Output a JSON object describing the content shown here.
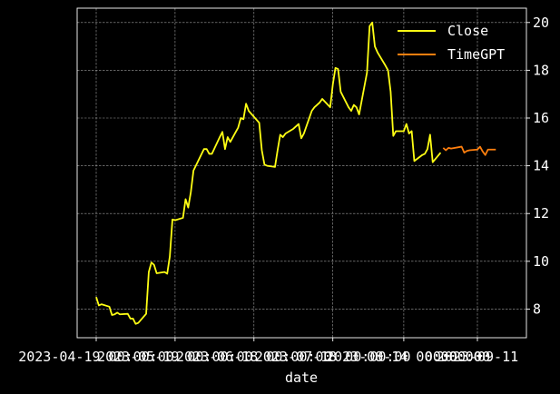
{
  "chart_data": {
    "type": "line",
    "title": "",
    "xlabel": "date",
    "ylabel": "",
    "ylim": [
      6.8,
      20.6
    ],
    "grid": true,
    "legend_position": "top-right",
    "background": "#000000",
    "x_ticks": [
      {
        "date": "2023-04-19",
        "label": "2023-04-19 00:00:00"
      },
      {
        "date": "2023-05-19",
        "label": "2023-05-19 00:00:00"
      },
      {
        "date": "2023-06-18",
        "label": "2023-06-18 00:00:00"
      },
      {
        "date": "2023-07-18",
        "label": "2023-07-18 00:00:00"
      },
      {
        "date": "2023-08-14",
        "label": "2023-08-14 00:00:00"
      },
      {
        "date": "2023-09-11",
        "label": "2023-09-11"
      }
    ],
    "x_tick_extra_label": "00:00:00",
    "y_ticks": [
      8,
      10,
      12,
      14,
      16,
      18,
      20
    ],
    "series": [
      {
        "name": "Close",
        "color": "#ffff14",
        "points": [
          [
            "2023-04-19",
            8.5
          ],
          [
            "2023-04-20",
            8.15
          ],
          [
            "2023-04-21",
            8.2
          ],
          [
            "2023-04-24",
            8.1
          ],
          [
            "2023-04-25",
            7.75
          ],
          [
            "2023-04-26",
            7.78
          ],
          [
            "2023-04-27",
            7.85
          ],
          [
            "2023-04-28",
            7.78
          ],
          [
            "2023-05-01",
            7.8
          ],
          [
            "2023-05-02",
            7.6
          ],
          [
            "2023-05-03",
            7.6
          ],
          [
            "2023-05-04",
            7.38
          ],
          [
            "2023-05-05",
            7.42
          ],
          [
            "2023-05-08",
            7.8
          ],
          [
            "2023-05-09",
            9.55
          ],
          [
            "2023-05-10",
            9.95
          ],
          [
            "2023-05-11",
            9.85
          ],
          [
            "2023-05-12",
            9.5
          ],
          [
            "2023-05-15",
            9.55
          ],
          [
            "2023-05-16",
            9.48
          ],
          [
            "2023-05-17",
            10.2
          ],
          [
            "2023-05-18",
            11.75
          ],
          [
            "2023-05-19",
            11.72
          ],
          [
            "2023-05-22",
            11.82
          ],
          [
            "2023-05-23",
            12.6
          ],
          [
            "2023-05-24",
            12.25
          ],
          [
            "2023-05-25",
            12.9
          ],
          [
            "2023-05-26",
            13.8
          ],
          [
            "2023-05-30",
            14.7
          ],
          [
            "2023-05-31",
            14.7
          ],
          [
            "2023-06-01",
            14.5
          ],
          [
            "2023-06-02",
            14.5
          ],
          [
            "2023-06-05",
            15.2
          ],
          [
            "2023-06-06",
            15.42
          ],
          [
            "2023-06-07",
            14.7
          ],
          [
            "2023-06-08",
            15.2
          ],
          [
            "2023-06-09",
            15.0
          ],
          [
            "2023-06-12",
            15.6
          ],
          [
            "2023-06-13",
            16.0
          ],
          [
            "2023-06-14",
            15.95
          ],
          [
            "2023-06-15",
            16.6
          ],
          [
            "2023-06-16",
            16.3
          ],
          [
            "2023-06-20",
            15.8
          ],
          [
            "2023-06-21",
            14.65
          ],
          [
            "2023-06-22",
            14.05
          ],
          [
            "2023-06-23",
            14.0
          ],
          [
            "2023-06-26",
            13.95
          ],
          [
            "2023-06-27",
            14.65
          ],
          [
            "2023-06-28",
            15.3
          ],
          [
            "2023-06-29",
            15.2
          ],
          [
            "2023-06-30",
            15.35
          ],
          [
            "2023-07-03",
            15.55
          ],
          [
            "2023-07-05",
            15.75
          ],
          [
            "2023-07-06",
            15.15
          ],
          [
            "2023-07-07",
            15.35
          ],
          [
            "2023-07-10",
            16.3
          ],
          [
            "2023-07-11",
            16.45
          ],
          [
            "2023-07-12",
            16.55
          ],
          [
            "2023-07-13",
            16.65
          ],
          [
            "2023-07-14",
            16.8
          ],
          [
            "2023-07-17",
            16.45
          ],
          [
            "2023-07-18",
            17.4
          ],
          [
            "2023-07-19",
            18.1
          ],
          [
            "2023-07-20",
            18.05
          ],
          [
            "2023-07-21",
            17.1
          ],
          [
            "2023-07-24",
            16.45
          ],
          [
            "2023-07-25",
            16.3
          ],
          [
            "2023-07-26",
            16.55
          ],
          [
            "2023-07-27",
            16.45
          ],
          [
            "2023-07-28",
            16.15
          ],
          [
            "2023-07-31",
            17.9
          ],
          [
            "2023-08-01",
            19.85
          ],
          [
            "2023-08-02",
            20.0
          ],
          [
            "2023-08-03",
            19.0
          ],
          [
            "2023-08-04",
            18.75
          ],
          [
            "2023-08-07",
            18.2
          ],
          [
            "2023-08-08",
            18.0
          ],
          [
            "2023-08-09",
            17.1
          ],
          [
            "2023-08-10",
            15.25
          ],
          [
            "2023-08-11",
            15.45
          ],
          [
            "2023-08-14",
            15.45
          ],
          [
            "2023-08-15",
            15.75
          ],
          [
            "2023-08-16",
            15.35
          ],
          [
            "2023-08-17",
            15.45
          ],
          [
            "2023-08-18",
            14.2
          ],
          [
            "2023-08-21",
            14.45
          ],
          [
            "2023-08-22",
            14.5
          ],
          [
            "2023-08-23",
            14.7
          ],
          [
            "2023-08-24",
            15.3
          ],
          [
            "2023-08-25",
            14.15
          ],
          [
            "2023-08-28",
            14.55
          ]
        ]
      },
      {
        "name": "TimeGPT",
        "color": "#ff7f0e",
        "points": [
          [
            "2023-08-29",
            14.75
          ],
          [
            "2023-08-30",
            14.65
          ],
          [
            "2023-08-31",
            14.75
          ],
          [
            "2023-09-01",
            14.72
          ],
          [
            "2023-09-05",
            14.8
          ],
          [
            "2023-09-06",
            14.55
          ],
          [
            "2023-09-07",
            14.62
          ],
          [
            "2023-09-08",
            14.65
          ],
          [
            "2023-09-11",
            14.68
          ],
          [
            "2023-09-12",
            14.8
          ],
          [
            "2023-09-13",
            14.6
          ],
          [
            "2023-09-14",
            14.45
          ],
          [
            "2023-09-15",
            14.68
          ],
          [
            "2023-09-18",
            14.68
          ]
        ]
      }
    ]
  }
}
